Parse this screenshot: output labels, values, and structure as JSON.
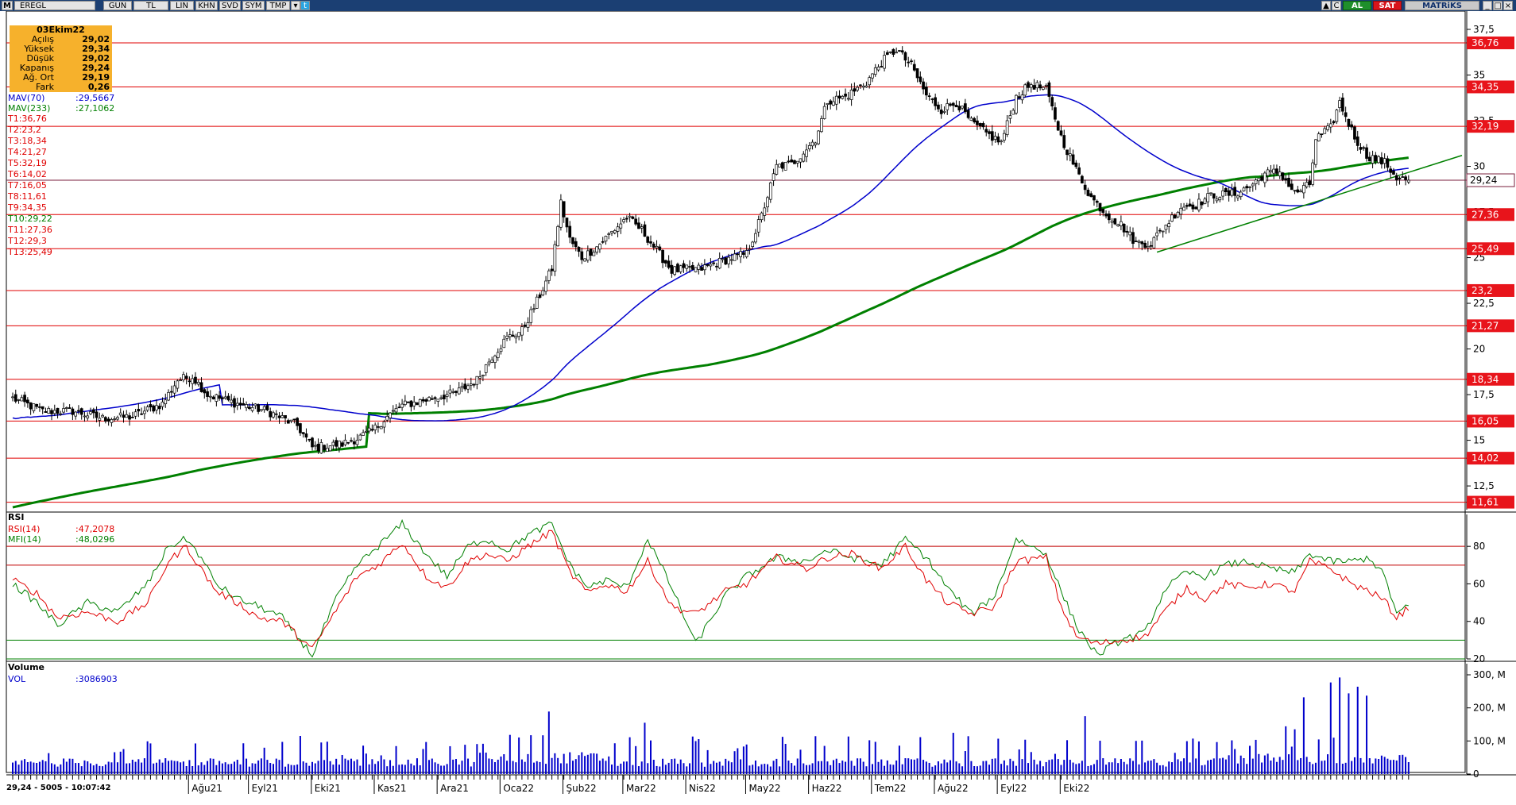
{
  "toolbar": {
    "symbol": "EREGL",
    "buttons": [
      "GUN",
      "TL",
      "LIN",
      "KHN",
      "SVD",
      "SYM",
      "TMP"
    ],
    "buy_label": "AL",
    "sell_label": "SAT",
    "brand": "MATRiKS"
  },
  "info_box": {
    "date": "03Ekim22",
    "rows": [
      {
        "label": "Açılış",
        "value": "29,02"
      },
      {
        "label": "Yüksek",
        "value": "29,34"
      },
      {
        "label": "Düşük",
        "value": "29,02"
      },
      {
        "label": "Kapanış",
        "value": "29,24"
      },
      {
        "label": "Ağ. Ort",
        "value": "29,19"
      },
      {
        "label": "Fark",
        "value": "0,26"
      }
    ]
  },
  "overlays": {
    "mav70": {
      "label": "MAV(70)",
      "value": ":29,5667",
      "color": "#0000cc"
    },
    "mav233": {
      "label": "MAV(233)",
      "value": ":27,1062",
      "color": "#008000"
    },
    "trend_levels": [
      {
        "label": "T1:36,76",
        "value": 36.76
      },
      {
        "label": "T2:23,2",
        "value": 23.2
      },
      {
        "label": "T3:18,34",
        "value": 18.34
      },
      {
        "label": "T4:21,27",
        "value": 21.27
      },
      {
        "label": "T5:32,19",
        "value": 32.19
      },
      {
        "label": "T6:14,02",
        "value": 14.02
      },
      {
        "label": "T7:16,05",
        "value": 16.05
      },
      {
        "label": "T8:11,61",
        "value": 11.61
      },
      {
        "label": "T9:34,35",
        "value": 34.35
      },
      {
        "label": "T10:29,22",
        "value": 29.22
      },
      {
        "label": "T11:27,36",
        "value": 27.36
      },
      {
        "label": "T12:29,3",
        "value": 29.3
      },
      {
        "label": "T13:25,49",
        "value": 25.49
      }
    ]
  },
  "chart_data": [
    {
      "type": "candlestick",
      "symbol": "EREGL",
      "ylim": [
        11.2,
        38.5
      ],
      "yticks": [
        "37,5",
        "35",
        "32,5",
        "30",
        "27,5",
        "25",
        "22,5",
        "20",
        "17,5",
        "15",
        "12,5"
      ],
      "ytick_values": [
        37.5,
        35,
        32.5,
        30,
        27.5,
        25,
        22.5,
        20,
        17.5,
        15,
        12.5
      ],
      "level_labels": [
        "36,76",
        "34,35",
        "32,19",
        "27,36",
        "25,49",
        "23,2",
        "21,27",
        "18,34",
        "16,05",
        "14,02",
        "11,61"
      ],
      "level_values": [
        36.76,
        34.35,
        32.19,
        27.36,
        25.49,
        23.2,
        21.27,
        18.34,
        16.05,
        14.02,
        11.61
      ],
      "last_price_label": "29,24",
      "last_price": 29.24,
      "close_anchors": [
        [
          0,
          17.3
        ],
        [
          10,
          16.6
        ],
        [
          20,
          16.6
        ],
        [
          30,
          16.2
        ],
        [
          40,
          16.3
        ],
        [
          50,
          17.0
        ],
        [
          55,
          18.3
        ],
        [
          60,
          18.5
        ],
        [
          65,
          17.5
        ],
        [
          75,
          17.0
        ],
        [
          85,
          16.6
        ],
        [
          95,
          15.8
        ],
        [
          100,
          14.6
        ],
        [
          110,
          14.8
        ],
        [
          115,
          15.1
        ],
        [
          120,
          15.5
        ],
        [
          125,
          16.3
        ],
        [
          130,
          16.9
        ],
        [
          140,
          17.3
        ],
        [
          148,
          17.6
        ],
        [
          155,
          18.3
        ],
        [
          160,
          19.6
        ],
        [
          165,
          20.6
        ],
        [
          170,
          21.0
        ],
        [
          175,
          22.6
        ],
        [
          180,
          24.4
        ],
        [
          183,
          28.0
        ],
        [
          186,
          26.0
        ],
        [
          190,
          25.0
        ],
        [
          195,
          25.6
        ],
        [
          205,
          27.2
        ],
        [
          210,
          26.5
        ],
        [
          220,
          24.3
        ],
        [
          230,
          24.4
        ],
        [
          240,
          25.0
        ],
        [
          245,
          25.2
        ],
        [
          250,
          27.3
        ],
        [
          255,
          30.0
        ],
        [
          260,
          30.1
        ],
        [
          268,
          31.5
        ],
        [
          272,
          33.6
        ],
        [
          278,
          33.8
        ],
        [
          285,
          34.6
        ],
        [
          290,
          35.7
        ],
        [
          295,
          36.4
        ],
        [
          300,
          35.5
        ],
        [
          305,
          33.9
        ],
        [
          310,
          33.1
        ],
        [
          315,
          33.5
        ],
        [
          320,
          32.4
        ],
        [
          325,
          31.8
        ],
        [
          330,
          31.3
        ],
        [
          335,
          33.8
        ],
        [
          340,
          34.5
        ],
        [
          345,
          34.2
        ],
        [
          350,
          31.6
        ],
        [
          355,
          29.8
        ],
        [
          360,
          28.3
        ],
        [
          365,
          27.4
        ],
        [
          370,
          26.8
        ],
        [
          375,
          25.8
        ],
        [
          380,
          25.8
        ],
        [
          385,
          26.8
        ],
        [
          390,
          27.8
        ],
        [
          395,
          27.9
        ],
        [
          400,
          28.4
        ],
        [
          408,
          28.5
        ],
        [
          413,
          28.9
        ],
        [
          418,
          29.6
        ],
        [
          423,
          29.7
        ],
        [
          428,
          28.5
        ],
        [
          433,
          29.0
        ],
        [
          435,
          31.5
        ],
        [
          440,
          32.1
        ],
        [
          443,
          33.5
        ],
        [
          448,
          31.6
        ],
        [
          452,
          30.6
        ],
        [
          458,
          30.2
        ],
        [
          462,
          29.4
        ],
        [
          466,
          29.24
        ]
      ],
      "volume": {
        "label": "VOL",
        "value": ":3086903",
        "yticks": [
          "300, M",
          "200, M",
          "100, M",
          "0"
        ],
        "ytick_values": [
          300,
          200,
          100,
          0
        ],
        "max_visible": 300
      },
      "moving_averages": [
        {
          "name": "MAV(70)",
          "color": "#0000cc"
        },
        {
          "name": "MAV(233)",
          "color": "#008000"
        }
      ]
    },
    {
      "type": "line",
      "title": "RSI",
      "series": [
        {
          "name": "RSI(14)",
          "value_label": ":47,2078",
          "last": 47.2078,
          "color": "#e00000"
        },
        {
          "name": "MFI(14)",
          "value_label": ":48,0296",
          "last": 48.0296,
          "color": "#008000"
        }
      ],
      "ylim": [
        20,
        97
      ],
      "yticks": [
        "80",
        "60",
        "40",
        "20"
      ],
      "ytick_values": [
        80,
        60,
        40,
        20
      ],
      "levels": [
        80,
        70,
        30,
        20
      ],
      "rsi_anchors": [
        [
          0,
          62
        ],
        [
          8,
          55
        ],
        [
          15,
          42
        ],
        [
          25,
          45
        ],
        [
          35,
          40
        ],
        [
          45,
          50
        ],
        [
          52,
          72
        ],
        [
          58,
          80
        ],
        [
          62,
          70
        ],
        [
          68,
          56
        ],
        [
          75,
          50
        ],
        [
          82,
          42
        ],
        [
          90,
          40
        ],
        [
          100,
          25
        ],
        [
          108,
          46
        ],
        [
          115,
          64
        ],
        [
          122,
          70
        ],
        [
          130,
          82
        ],
        [
          138,
          64
        ],
        [
          145,
          58
        ],
        [
          152,
          72
        ],
        [
          158,
          76
        ],
        [
          165,
          72
        ],
        [
          172,
          80
        ],
        [
          180,
          88
        ],
        [
          186,
          66
        ],
        [
          192,
          55
        ],
        [
          198,
          60
        ],
        [
          205,
          56
        ],
        [
          212,
          72
        ],
        [
          220,
          48
        ],
        [
          228,
          44
        ],
        [
          238,
          56
        ],
        [
          245,
          60
        ],
        [
          255,
          74
        ],
        [
          265,
          68
        ],
        [
          272,
          74
        ],
        [
          280,
          76
        ],
        [
          290,
          68
        ],
        [
          298,
          80
        ],
        [
          305,
          62
        ],
        [
          312,
          50
        ],
        [
          320,
          44
        ],
        [
          328,
          48
        ],
        [
          335,
          72
        ],
        [
          345,
          74
        ],
        [
          350,
          48
        ],
        [
          355,
          32
        ],
        [
          362,
          28
        ],
        [
          370,
          30
        ],
        [
          378,
          32
        ],
        [
          385,
          46
        ],
        [
          392,
          58
        ],
        [
          398,
          52
        ],
        [
          405,
          60
        ],
        [
          412,
          58
        ],
        [
          420,
          60
        ],
        [
          428,
          56
        ],
        [
          433,
          72
        ],
        [
          440,
          68
        ],
        [
          447,
          60
        ],
        [
          453,
          56
        ],
        [
          458,
          51
        ],
        [
          462,
          42
        ],
        [
          466,
          47.2
        ]
      ],
      "mfi_anchors": [
        [
          0,
          60
        ],
        [
          8,
          50
        ],
        [
          15,
          38
        ],
        [
          25,
          50
        ],
        [
          35,
          45
        ],
        [
          45,
          60
        ],
        [
          52,
          80
        ],
        [
          58,
          84
        ],
        [
          62,
          76
        ],
        [
          68,
          60
        ],
        [
          75,
          52
        ],
        [
          82,
          48
        ],
        [
          90,
          42
        ],
        [
          100,
          22
        ],
        [
          108,
          52
        ],
        [
          115,
          70
        ],
        [
          122,
          80
        ],
        [
          130,
          92
        ],
        [
          138,
          76
        ],
        [
          145,
          64
        ],
        [
          152,
          80
        ],
        [
          158,
          84
        ],
        [
          165,
          78
        ],
        [
          172,
          86
        ],
        [
          180,
          92
        ],
        [
          186,
          70
        ],
        [
          192,
          58
        ],
        [
          198,
          62
        ],
        [
          205,
          58
        ],
        [
          212,
          84
        ],
        [
          220,
          58
        ],
        [
          228,
          28
        ],
        [
          238,
          54
        ],
        [
          245,
          64
        ],
        [
          255,
          74
        ],
        [
          265,
          72
        ],
        [
          272,
          78
        ],
        [
          280,
          74
        ],
        [
          290,
          70
        ],
        [
          298,
          84
        ],
        [
          305,
          74
        ],
        [
          312,
          58
        ],
        [
          320,
          44
        ],
        [
          328,
          54
        ],
        [
          335,
          84
        ],
        [
          345,
          76
        ],
        [
          350,
          56
        ],
        [
          355,
          38
        ],
        [
          362,
          22
        ],
        [
          370,
          30
        ],
        [
          378,
          34
        ],
        [
          385,
          58
        ],
        [
          392,
          66
        ],
        [
          398,
          64
        ],
        [
          405,
          70
        ],
        [
          412,
          72
        ],
        [
          420,
          68
        ],
        [
          428,
          66
        ],
        [
          433,
          76
        ],
        [
          440,
          72
        ],
        [
          447,
          72
        ],
        [
          453,
          74
        ],
        [
          458,
          64
        ],
        [
          462,
          44
        ],
        [
          466,
          48.0
        ]
      ]
    }
  ],
  "panels": {
    "rsi_title": "RSI",
    "volume_title": "Volume"
  },
  "x_axis": {
    "months": [
      "Ağu21",
      "Eyl21",
      "Eki21",
      "Kas21",
      "Ara21",
      "Oca22",
      "Şub22",
      "Mar22",
      "Nis22",
      "May22",
      "Haz22",
      "Tem22",
      "Ağu22",
      "Eyl22",
      "Eki22"
    ],
    "month_bar_index": [
      24,
      64,
      106,
      148,
      190,
      232,
      274,
      314,
      356,
      396,
      438,
      480,
      522,
      564,
      606
    ]
  },
  "status_text": "29,24 - 5005 - 10:07:42"
}
